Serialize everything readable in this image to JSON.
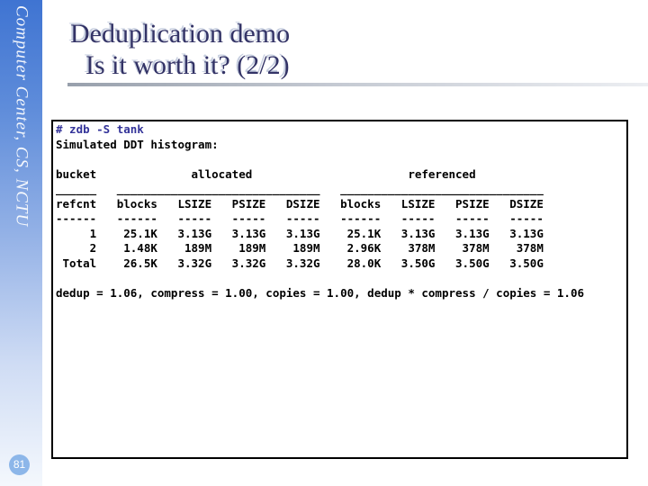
{
  "slide": {
    "sidebar_text": "Computer Center, CS, NCTU",
    "page_number": "81",
    "title_line1": "Deduplication demo",
    "title_line2": "Is it worth it? (2/2)"
  },
  "terminal": {
    "command": "# zdb -S tank",
    "output": "\nSimulated DDT histogram:\n\nbucket              allocated                       referenced\n______   ______________________________   ______________________________\nrefcnt   blocks   LSIZE   PSIZE   DSIZE   blocks   LSIZE   PSIZE   DSIZE\n------   ------   -----   -----   -----   ------   -----   -----   -----\n     1    25.1K   3.13G   3.13G   3.13G    25.1K   3.13G   3.13G   3.13G\n     2    1.48K    189M    189M    189M    2.96K    378M    378M    378M\n Total    26.5K   3.32G   3.32G   3.32G    28.0K   3.50G   3.50G   3.50G\n\ndedup = 1.06, compress = 1.00, copies = 1.00, dedup * compress / copies = 1.06"
  },
  "histogram": {
    "heading": "Simulated DDT histogram:",
    "column_groups": [
      "bucket",
      "allocated",
      "referenced"
    ],
    "columns": [
      "refcnt",
      "blocks",
      "LSIZE",
      "PSIZE",
      "DSIZE",
      "blocks",
      "LSIZE",
      "PSIZE",
      "DSIZE"
    ],
    "rows": [
      {
        "refcnt": "1",
        "allocated": {
          "blocks": "25.1K",
          "LSIZE": "3.13G",
          "PSIZE": "3.13G",
          "DSIZE": "3.13G"
        },
        "referenced": {
          "blocks": "25.1K",
          "LSIZE": "3.13G",
          "PSIZE": "3.13G",
          "DSIZE": "3.13G"
        }
      },
      {
        "refcnt": "2",
        "allocated": {
          "blocks": "1.48K",
          "LSIZE": "189M",
          "PSIZE": "189M",
          "DSIZE": "189M"
        },
        "referenced": {
          "blocks": "2.96K",
          "LSIZE": "378M",
          "PSIZE": "378M",
          "DSIZE": "378M"
        }
      },
      {
        "refcnt": "Total",
        "allocated": {
          "blocks": "26.5K",
          "LSIZE": "3.32G",
          "PSIZE": "3.32G",
          "DSIZE": "3.32G"
        },
        "referenced": {
          "blocks": "28.0K",
          "LSIZE": "3.50G",
          "PSIZE": "3.50G",
          "DSIZE": "3.50G"
        }
      }
    ],
    "ratios": {
      "dedup": "1.06",
      "compress": "1.00",
      "copies": "1.00",
      "dedup_x_compress_over_copies": "1.06"
    }
  },
  "colors": {
    "title_text": "#333366",
    "title_shadow": "#c6cedf",
    "command_text": "#333399",
    "terminal_text": "#000000",
    "terminal_border": "#000000",
    "sidebar_top": "#3f74d2",
    "sidebar_bottom": "#f4f8fd",
    "page_badge": "#8cb6e9",
    "divider_left": "#98a0ac"
  }
}
